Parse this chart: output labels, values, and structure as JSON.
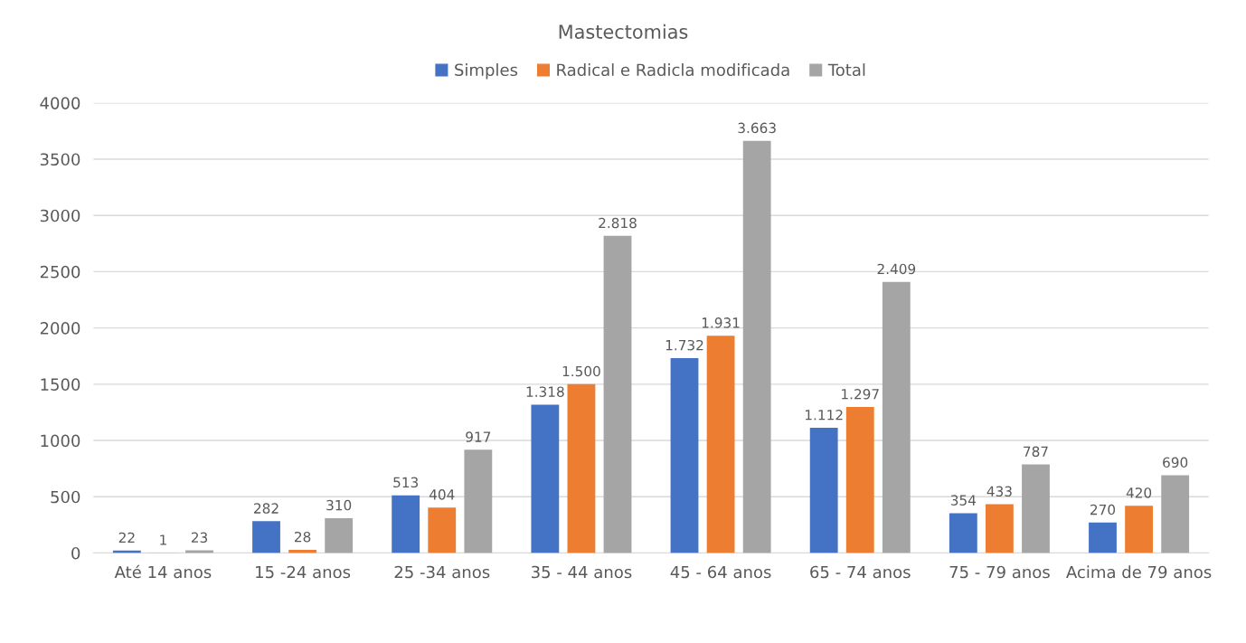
{
  "chart_data": {
    "type": "bar",
    "title": "Mastectomias",
    "categories": [
      "Até 14 anos",
      "15 -24 anos",
      "25 -34 anos",
      "35 - 44 anos",
      "45 - 64 anos",
      "65 - 74 anos",
      "75 - 79 anos",
      "Acima de 79 anos"
    ],
    "series": [
      {
        "name": "Simples",
        "color": "#4472c4",
        "values": [
          22,
          282,
          513,
          1318,
          1732,
          1112,
          354,
          270
        ],
        "value_labels": [
          "22",
          "282",
          "513",
          "1.318",
          "1.732",
          "1.112",
          "354",
          "270"
        ]
      },
      {
        "name": "Radical e Radicla modificada",
        "color": "#ed7d31",
        "values": [
          1,
          28,
          404,
          1500,
          1931,
          1297,
          433,
          420
        ],
        "value_labels": [
          "1",
          "28",
          "404",
          "1.500",
          "1.931",
          "1.297",
          "433",
          "420"
        ]
      },
      {
        "name": "Total",
        "color": "#a5a5a5",
        "values": [
          23,
          310,
          917,
          2818,
          3663,
          2409,
          787,
          690
        ],
        "value_labels": [
          "23",
          "310",
          "917",
          "2.818",
          "3.663",
          "2.409",
          "787",
          "690"
        ]
      }
    ],
    "ylim": [
      0,
      4000
    ],
    "yticks": [
      0,
      500,
      1000,
      1500,
      2000,
      2500,
      3000,
      3500,
      4000
    ],
    "grid": "y",
    "legend": "top"
  }
}
